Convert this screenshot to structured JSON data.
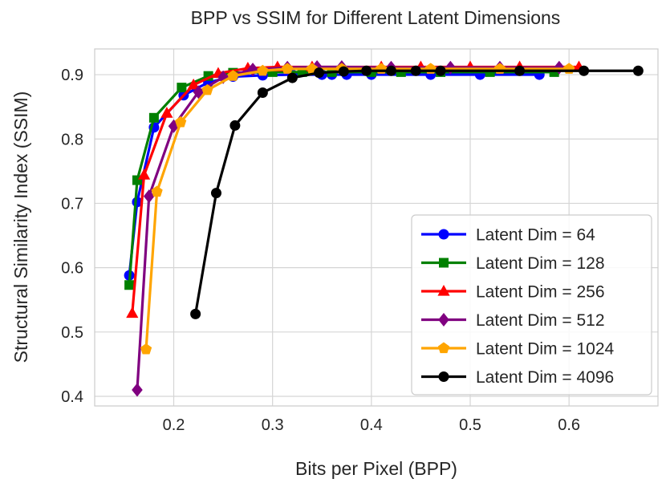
{
  "chart_data": {
    "type": "line",
    "title": "BPP vs SSIM for Different Latent Dimensions",
    "xlabel": "Bits per Pixel (BPP)",
    "ylabel": "Structural Similarity Index (SSIM)",
    "xlim": [
      0.12,
      0.69
    ],
    "ylim": [
      0.385,
      0.94
    ],
    "xticks": [
      0.2,
      0.3,
      0.4,
      0.5,
      0.6
    ],
    "xtick_labels": [
      "0.2",
      "0.3",
      "0.4",
      "0.5",
      "0.6"
    ],
    "yticks": [
      0.4,
      0.5,
      0.6,
      0.7,
      0.8,
      0.9
    ],
    "ytick_labels": [
      "0.4",
      "0.5",
      "0.6",
      "0.7",
      "0.8",
      "0.9"
    ],
    "grid": true,
    "legend_position": "lower-right",
    "series": [
      {
        "name": "Latent Dim = 64",
        "color": "#0000ff",
        "marker": "circle",
        "x": [
          0.155,
          0.163,
          0.18,
          0.21,
          0.235,
          0.26,
          0.29,
          0.32,
          0.35,
          0.36,
          0.375,
          0.4,
          0.46,
          0.51,
          0.57
        ],
        "y": [
          0.588,
          0.702,
          0.818,
          0.868,
          0.888,
          0.897,
          0.899,
          0.9,
          0.9,
          0.9,
          0.9,
          0.9,
          0.9,
          0.9,
          0.9
        ]
      },
      {
        "name": "Latent Dim = 128",
        "color": "#008000",
        "marker": "square",
        "x": [
          0.155,
          0.163,
          0.18,
          0.208,
          0.235,
          0.26,
          0.3,
          0.33,
          0.36,
          0.4,
          0.43,
          0.47,
          0.52,
          0.585
        ],
        "y": [
          0.573,
          0.736,
          0.833,
          0.88,
          0.898,
          0.903,
          0.904,
          0.904,
          0.904,
          0.904,
          0.904,
          0.904,
          0.904,
          0.904
        ]
      },
      {
        "name": "Latent Dim = 256",
        "color": "#ff0000",
        "marker": "triangle",
        "x": [
          0.158,
          0.17,
          0.193,
          0.22,
          0.245,
          0.275,
          0.305,
          0.34,
          0.37,
          0.41,
          0.45,
          0.5,
          0.55,
          0.61
        ],
        "y": [
          0.529,
          0.744,
          0.84,
          0.884,
          0.902,
          0.91,
          0.912,
          0.912,
          0.912,
          0.912,
          0.912,
          0.912,
          0.912,
          0.912
        ]
      },
      {
        "name": "Latent Dim = 512",
        "color": "#800080",
        "marker": "diamond",
        "x": [
          0.163,
          0.175,
          0.2,
          0.225,
          0.25,
          0.28,
          0.315,
          0.345,
          0.37,
          0.42,
          0.48,
          0.53,
          0.59
        ],
        "y": [
          0.41,
          0.711,
          0.82,
          0.873,
          0.896,
          0.908,
          0.911,
          0.912,
          0.912,
          0.911,
          0.911,
          0.911,
          0.911
        ]
      },
      {
        "name": "Latent Dim = 1024",
        "color": "#ffa500",
        "marker": "pentagon",
        "x": [
          0.172,
          0.183,
          0.207,
          0.234,
          0.26,
          0.29,
          0.315,
          0.34,
          0.37,
          0.41,
          0.46,
          0.53,
          0.6
        ],
        "y": [
          0.473,
          0.718,
          0.826,
          0.876,
          0.898,
          0.906,
          0.909,
          0.909,
          0.909,
          0.909,
          0.909,
          0.909,
          0.909
        ]
      },
      {
        "name": "Latent Dim = 4096",
        "color": "#000000",
        "marker": "circle",
        "x": [
          0.222,
          0.243,
          0.262,
          0.29,
          0.32,
          0.347,
          0.372,
          0.395,
          0.42,
          0.445,
          0.47,
          0.55,
          0.615,
          0.67
        ],
        "y": [
          0.528,
          0.716,
          0.821,
          0.872,
          0.895,
          0.903,
          0.905,
          0.906,
          0.906,
          0.906,
          0.906,
          0.906,
          0.906,
          0.906
        ]
      }
    ]
  }
}
